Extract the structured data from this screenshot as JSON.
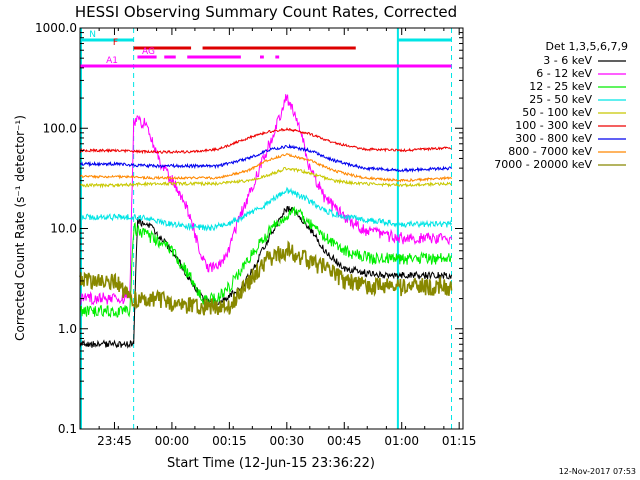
{
  "chart_data": {
    "type": "line",
    "title": "HESSI Observing Summary Count Rates, Corrected",
    "xlabel": "Start Time (12-Jun-15 23:36:22)",
    "ylabel": "Corrected Count Rate (s⁻¹ detector⁻¹)",
    "yscale": "log",
    "xlim": [
      "23:36",
      "01:16"
    ],
    "ylim": [
      0.1,
      1000
    ],
    "x_ticks": [
      "23:45",
      "00:00",
      "00:15",
      "00:30",
      "00:45",
      "01:00",
      "01:15"
    ],
    "y_ticks": [
      "1000.0",
      "100.0",
      "10.0",
      "1.0",
      "0.1"
    ],
    "legend_title": "Det 1,3,5,6,7,9",
    "legend_position": "right",
    "footer": "12-Nov-2017 07:53",
    "night_intervals": [
      [
        "23:36",
        "23:50"
      ],
      [
        "00:59",
        "01:13"
      ]
    ],
    "flags": [
      {
        "label": "N",
        "color": "#00e5e5",
        "segments": [
          [
            "23:36",
            "23:50"
          ],
          [
            "00:59",
            "01:13"
          ]
        ]
      },
      {
        "label": "F",
        "color": "#dd0000",
        "segments": [
          [
            "23:50",
            "00:05"
          ],
          [
            "00:08",
            "00:48"
          ]
        ]
      },
      {
        "label": "AG",
        "color": "#ff00ff",
        "segments": [
          [
            "23:51",
            "23:56"
          ],
          [
            "23:58",
            "00:01"
          ],
          [
            "00:04",
            "00:18"
          ],
          [
            "00:23",
            "00:24"
          ],
          [
            "00:27",
            "00:28"
          ]
        ]
      },
      {
        "label": "A1",
        "color": "#ff00ff",
        "segments": [
          [
            "23:36",
            "01:13"
          ]
        ]
      }
    ],
    "series": [
      {
        "name": "3 - 6 keV",
        "color": "#000000",
        "x": [
          "23:36",
          "23:45",
          "23:50",
          "23:51",
          "23:55",
          "00:00",
          "00:05",
          "00:08",
          "00:12",
          "00:18",
          "00:22",
          "00:26",
          "00:30",
          "00:32",
          "00:36",
          "00:40",
          "00:45",
          "00:52",
          "01:00",
          "01:10",
          "01:13"
        ],
        "y": [
          0.7,
          0.7,
          0.7,
          12,
          10,
          6,
          3,
          2,
          1.8,
          2.5,
          4.5,
          9,
          16,
          15,
          10,
          6,
          4,
          3.5,
          3.4,
          3.4,
          3.4
        ]
      },
      {
        "name": "6 - 12 keV",
        "color": "#ff00ff",
        "x": [
          "23:36",
          "23:49",
          "23:50",
          "23:53",
          "23:57",
          "00:00",
          "00:03",
          "00:05",
          "00:08",
          "00:10",
          "00:14",
          "00:18",
          "00:23",
          "00:27",
          "00:30",
          "00:33",
          "00:36",
          "00:40",
          "00:45",
          "00:52",
          "01:00",
          "01:13"
        ],
        "y": [
          2,
          2,
          120,
          110,
          45,
          30,
          20,
          12,
          5,
          4,
          5,
          14,
          40,
          100,
          210,
          110,
          40,
          20,
          13,
          9,
          8,
          8
        ]
      },
      {
        "name": "12 - 25 keV",
        "color": "#00ee00",
        "x": [
          "23:36",
          "23:49",
          "23:50",
          "23:55",
          "00:00",
          "00:05",
          "00:08",
          "00:12",
          "00:15",
          "00:20",
          "00:25",
          "00:30",
          "00:33",
          "00:36",
          "00:40",
          "00:45",
          "00:52",
          "01:00",
          "01:13"
        ],
        "y": [
          1.5,
          1.5,
          10,
          8,
          6,
          3.2,
          2,
          2,
          2.6,
          5,
          9,
          14,
          15,
          11,
          8,
          6,
          5,
          5,
          5
        ]
      },
      {
        "name": "25 - 50 keV",
        "color": "#00e5e5",
        "x": [
          "23:36",
          "23:45",
          "23:52",
          "00:00",
          "00:10",
          "00:18",
          "00:25",
          "00:30",
          "00:35",
          "00:40",
          "00:45",
          "00:52",
          "01:00",
          "01:13"
        ],
        "y": [
          13,
          13,
          13,
          11,
          10,
          12.5,
          18,
          24,
          20,
          15,
          13,
          12,
          11,
          11
        ]
      },
      {
        "name": "50 - 100 keV",
        "color": "#c8c800",
        "x": [
          "23:36",
          "23:45",
          "23:55",
          "00:05",
          "00:12",
          "00:20",
          "00:25",
          "00:30",
          "00:36",
          "00:42",
          "00:50",
          "01:00",
          "01:13"
        ],
        "y": [
          27,
          27,
          28,
          28,
          28,
          30,
          34,
          40,
          36,
          30,
          28,
          27,
          28
        ]
      },
      {
        "name": "100 - 300 keV",
        "color": "#ee0000",
        "x": [
          "23:36",
          "23:45",
          "23:55",
          "00:05",
          "00:12",
          "00:20",
          "00:25",
          "00:30",
          "00:36",
          "00:42",
          "00:50",
          "01:00",
          "01:13"
        ],
        "y": [
          60,
          60,
          58,
          58,
          62,
          80,
          92,
          98,
          88,
          72,
          62,
          60,
          64
        ]
      },
      {
        "name": "300 - 800 keV",
        "color": "#0000ee",
        "x": [
          "23:36",
          "23:45",
          "23:55",
          "00:05",
          "00:12",
          "00:20",
          "00:25",
          "00:30",
          "00:36",
          "00:42",
          "00:50",
          "01:00",
          "01:13"
        ],
        "y": [
          44,
          44,
          42,
          42,
          42,
          50,
          60,
          66,
          60,
          48,
          40,
          38,
          40
        ]
      },
      {
        "name": "800 - 7000 keV",
        "color": "#ff8800",
        "x": [
          "23:36",
          "23:45",
          "23:55",
          "00:05",
          "00:12",
          "00:20",
          "00:25",
          "00:30",
          "00:36",
          "00:42",
          "00:50",
          "01:00",
          "01:13"
        ],
        "y": [
          33,
          33,
          32,
          32,
          32,
          38,
          48,
          55,
          48,
          38,
          32,
          30,
          32
        ]
      },
      {
        "name": "7000 - 20000 keV",
        "color": "#888800",
        "x": [
          "23:36",
          "23:45",
          "23:50",
          "23:55",
          "00:00",
          "00:05",
          "00:10",
          "00:15",
          "00:20",
          "00:25",
          "00:30",
          "00:35",
          "00:40",
          "00:45",
          "00:50",
          "01:00",
          "01:13"
        ],
        "y": [
          3,
          3,
          2,
          2,
          1.8,
          1.7,
          1.6,
          1.7,
          3,
          5,
          6,
          5,
          4,
          3,
          2.7,
          2.6,
          2.6
        ]
      }
    ]
  }
}
